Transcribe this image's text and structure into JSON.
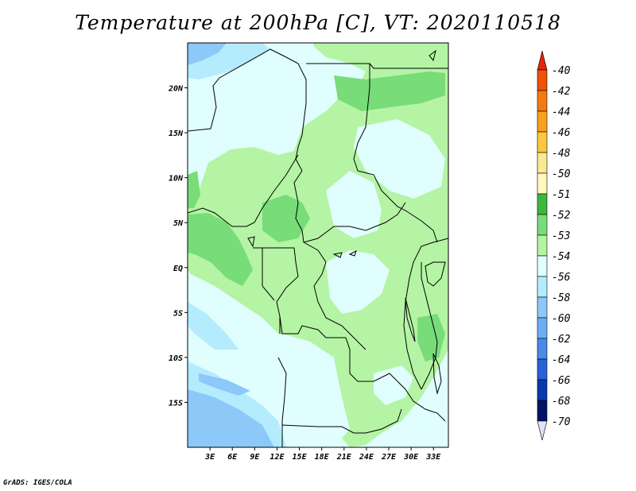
{
  "title": "Temperature at 200hPa [C], VT: 2020110518",
  "footer": "GrADS: IGES/COLA",
  "map": {
    "lon_range": [
      0,
      35
    ],
    "lat_range": [
      -20,
      25
    ],
    "lat_labels": [
      "20N",
      "15N",
      "10N",
      "5N",
      "EQ",
      "5S",
      "10S",
      "15S"
    ],
    "lon_labels": [
      "3E",
      "6E",
      "9E",
      "12E",
      "15E",
      "18E",
      "21E",
      "24E",
      "27E",
      "30E",
      "33E"
    ]
  },
  "colorbar": {
    "levels": [
      "-40",
      "-42",
      "-44",
      "-46",
      "-48",
      "-50",
      "-51",
      "-52",
      "-53",
      "-54",
      "-56",
      "-58",
      "-60",
      "-62",
      "-64",
      "-66",
      "-68",
      "-70"
    ],
    "colors": [
      "#e8220c",
      "#f0500a",
      "#f47a10",
      "#f8a020",
      "#fbc840",
      "#fbe890",
      "#fdf8c0",
      "#3cb83c",
      "#78dc78",
      "#b4f4a4",
      "#e0fefe",
      "#b4ecfe",
      "#8cc8f8",
      "#6caef4",
      "#4a8ae8",
      "#2a62d8",
      "#0a3aaa",
      "#00146a"
    ],
    "top_color": "#e8220c",
    "bottom_color": "#e0e0f8"
  }
}
